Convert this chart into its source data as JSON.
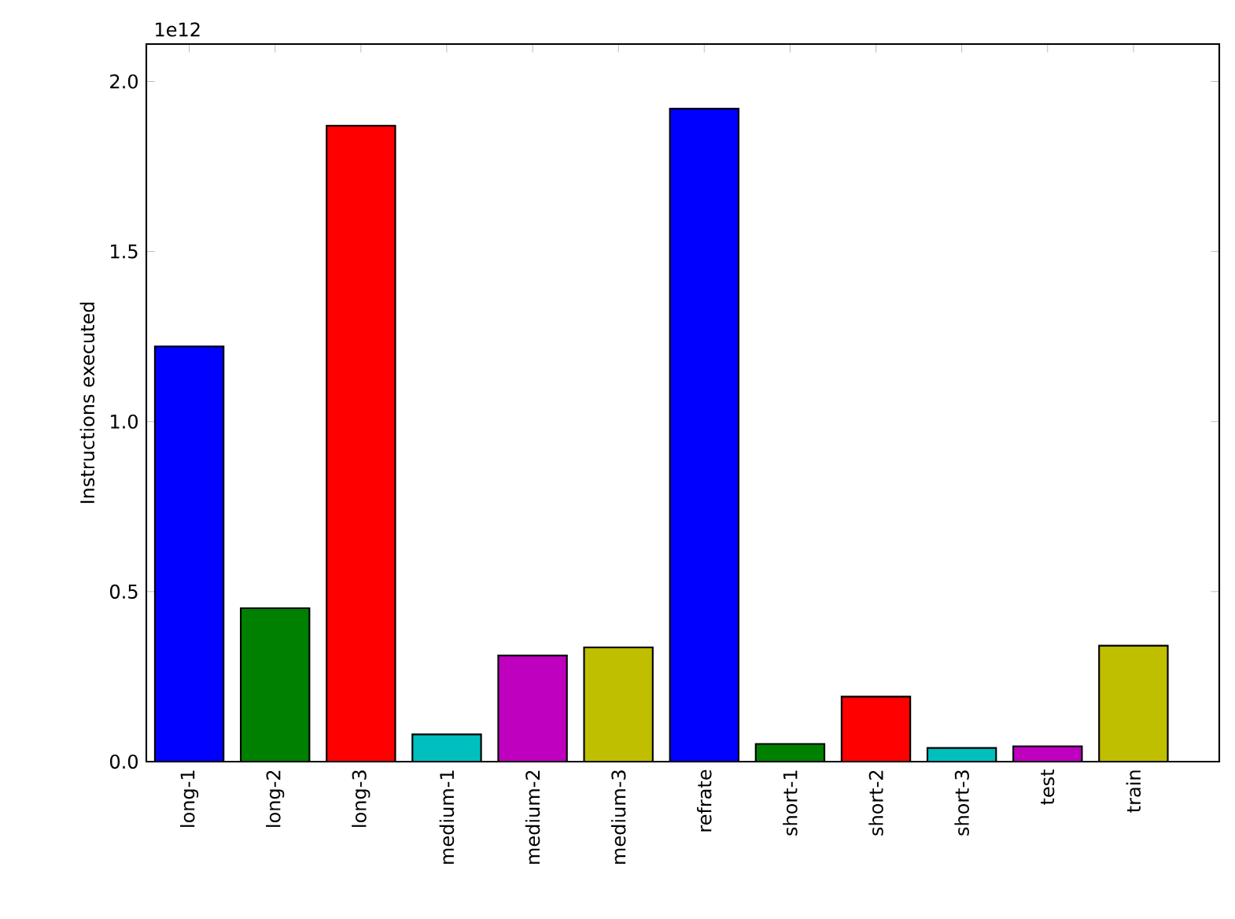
{
  "chart_data": {
    "type": "bar",
    "ylabel": "Instructions executed",
    "categories": [
      "long-1",
      "long-2",
      "long-3",
      "medium-1",
      "medium-2",
      "medium-3",
      "refrate",
      "short-1",
      "short-2",
      "short-3",
      "test",
      "train"
    ],
    "values": [
      1.221,
      0.451,
      1.87,
      0.08,
      0.312,
      0.336,
      1.92,
      0.052,
      0.191,
      0.04,
      0.045,
      0.341
    ],
    "colors": [
      "#0000ff",
      "#008000",
      "#ff0000",
      "#00bfbf",
      "#bf00bf",
      "#bfbf00",
      "#0000ff",
      "#008000",
      "#ff0000",
      "#00bfbf",
      "#bf00bf",
      "#bfbf00"
    ],
    "ylim": [
      0,
      2.11
    ],
    "yticks": [
      {
        "value": 0,
        "label": "0.0"
      },
      {
        "value": 0.5,
        "label": "0.5"
      },
      {
        "value": 1.0,
        "label": "1.0"
      },
      {
        "value": 1.5,
        "label": "1.5"
      },
      {
        "value": 2.0,
        "label": "2.0"
      }
    ],
    "annotations": [
      "1e12"
    ],
    "grid": false
  }
}
